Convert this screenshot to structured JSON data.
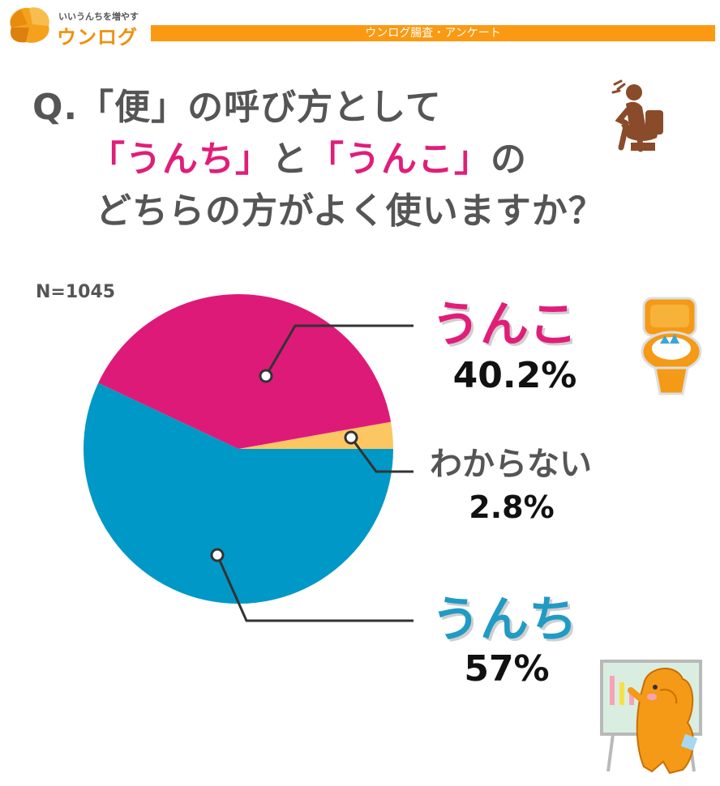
{
  "brand": {
    "tagline": "いいうんちを増やす",
    "name": "ウンログ",
    "header_banner": "ウンログ腸査・アンケート",
    "accent_color": "#fb9a12"
  },
  "question": {
    "line1": "Q.「便」の呼び方として",
    "line2_part1": "「うんち」",
    "line2_part2": "と",
    "line2_part3": "「うんこ」",
    "line2_part4": "の",
    "line3": "どちらの方がよく使いますか？"
  },
  "icons": [
    "person-on-toilet-icon",
    "toilet-icon",
    "mascot-at-whiteboard-icon"
  ],
  "chart_data": {
    "type": "pie",
    "sample_size_label": "N=1045",
    "categories": [
      "うんこ",
      "わからない",
      "うんち"
    ],
    "values": [
      40.2,
      2.8,
      57
    ],
    "value_labels": [
      "40.2%",
      "2.8%",
      "57%"
    ],
    "colors": [
      "#de1a79",
      "#fcc663",
      "#0098c6"
    ],
    "label_colors": [
      "#e01e79",
      "#555555",
      "#1f9bc4"
    ]
  }
}
